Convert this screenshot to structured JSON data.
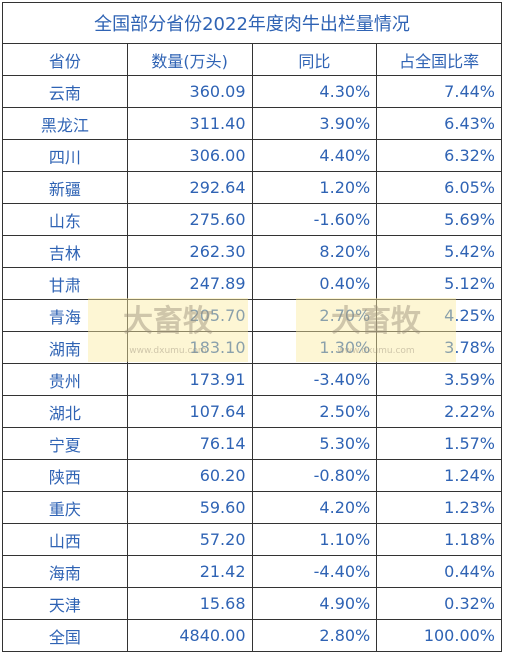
{
  "table": {
    "title": "全国部分省份2022年度肉牛出栏量情况",
    "header": [
      "省份",
      "数量(万头)",
      "同比",
      "占全国比率"
    ],
    "rows": [
      [
        "云南",
        "360.09",
        "4.30%",
        "7.44%"
      ],
      [
        "黑龙江",
        "311.40",
        "3.90%",
        "6.43%"
      ],
      [
        "四川",
        "306.00",
        "4.40%",
        "6.32%"
      ],
      [
        "新疆",
        "292.64",
        "1.20%",
        "6.05%"
      ],
      [
        "山东",
        "275.60",
        "-1.60%",
        "5.69%"
      ],
      [
        "吉林",
        "262.30",
        "8.20%",
        "5.42%"
      ],
      [
        "甘肃",
        "247.89",
        "0.40%",
        "5.12%"
      ],
      [
        "青海",
        "205.70",
        "2.70%",
        "4.25%"
      ],
      [
        "湖南",
        "183.10",
        "1.30%",
        "3.78%"
      ],
      [
        "贵州",
        "173.91",
        "-3.40%",
        "3.59%"
      ],
      [
        "湖北",
        "107.64",
        "2.50%",
        "2.22%"
      ],
      [
        "宁夏",
        "76.14",
        "5.30%",
        "1.57%"
      ],
      [
        "陕西",
        "60.20",
        "-0.80%",
        "1.24%"
      ],
      [
        "重庆",
        "59.60",
        "4.20%",
        "1.23%"
      ],
      [
        "山西",
        "57.20",
        "1.10%",
        "1.18%"
      ],
      [
        "海南",
        "21.42",
        "-4.40%",
        "0.44%"
      ],
      [
        "天津",
        "15.68",
        "4.90%",
        "0.32%"
      ],
      [
        "全国",
        "4840.00",
        "2.80%",
        "100.00%"
      ]
    ]
  },
  "watermark": {
    "brand": "大畜牧",
    "url": "www.dxumu.com"
  }
}
